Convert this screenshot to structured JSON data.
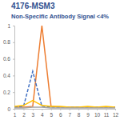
{
  "chart_data": {
    "type": "line",
    "title": "4176-MSM3",
    "subtitle": "Non-Specific Antibody Signal <4%",
    "x": [
      1,
      2,
      3,
      4,
      5,
      6,
      7,
      8,
      9,
      10,
      11,
      12
    ],
    "series": [
      {
        "color": "#ed7d31",
        "line_style": "solid",
        "values": [
          0.02,
          0.02,
          0.03,
          1.0,
          0.03,
          0.02,
          0.02,
          0.02,
          0.02,
          0.02,
          0.02,
          0.02
        ]
      },
      {
        "color": "#4472c4",
        "line_style": "dashed",
        "values": [
          0.02,
          0.03,
          0.45,
          0.03,
          0.02,
          0.02,
          0.02,
          0.02,
          0.02,
          0.02,
          0.02,
          0.02
        ]
      },
      {
        "color": "#ffc000",
        "line_style": "solid",
        "values": [
          0.03,
          0.04,
          0.1,
          0.04,
          0.03,
          0.03,
          0.02,
          0.02,
          0.03,
          0.02,
          0.03,
          0.02
        ]
      },
      {
        "color": "#a5a5a5",
        "line_style": "solid",
        "values": [
          0.01,
          0.01,
          0.02,
          0.02,
          0.01,
          0.01,
          0.01,
          0.01,
          0.01,
          0.01,
          0.01,
          0.01
        ]
      }
    ],
    "xlim": [
      1,
      12
    ],
    "xticks": [
      1,
      2,
      3,
      4,
      5,
      6,
      7,
      8,
      9,
      10,
      11,
      12
    ],
    "ylim": [
      0,
      1
    ],
    "yticks": [
      0,
      0.2,
      0.4,
      0.6,
      0.8,
      1
    ],
    "grid": false
  }
}
